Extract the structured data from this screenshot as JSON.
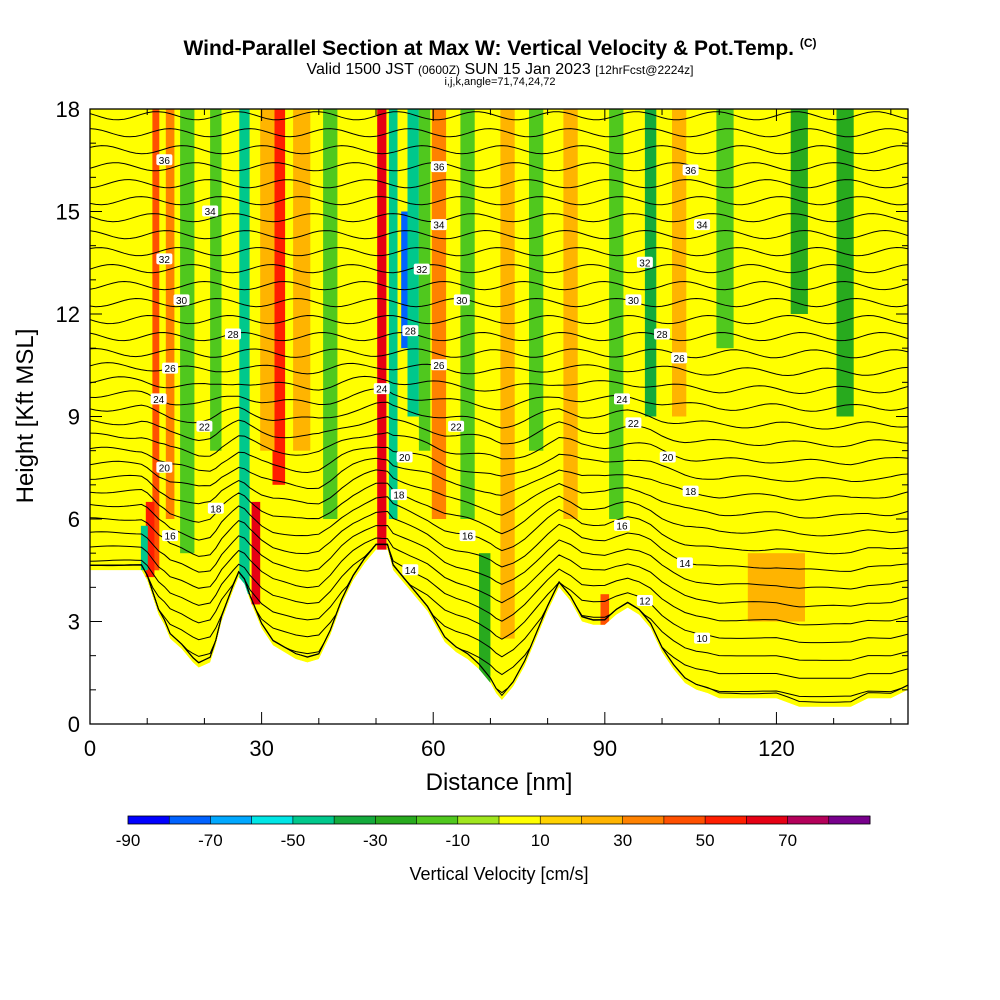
{
  "header": {
    "title": "Wind-Parallel Section at Max W: Vertical Velocity & Pot.Temp.",
    "copyright": "(C)",
    "valid_prefix": "Valid 1500 JST",
    "valid_utc": "(0600Z)",
    "valid_date": "SUN 15 Jan 2023",
    "forecast": "[12hrFcst@2224z]",
    "indices": "i,j,k,angle=71,74,24,72"
  },
  "chart_data": {
    "type": "heatmap",
    "xlabel": "Distance [nm]",
    "ylabel": "Height [Kft MSL]",
    "xlim": [
      0,
      143
    ],
    "ylim": [
      0,
      18
    ],
    "x_ticks": [
      0,
      30,
      60,
      90,
      120
    ],
    "y_ticks": [
      0,
      3,
      6,
      9,
      12,
      15,
      18
    ],
    "grid": false,
    "colorbar": {
      "label": "Vertical Velocity [cm/s]",
      "bounds": [
        -90,
        -80,
        -70,
        -60,
        -50,
        -40,
        -30,
        -20,
        -10,
        0,
        10,
        20,
        30,
        40,
        50,
        60,
        70,
        80
      ],
      "tick_labels": [
        "-90",
        "-70",
        "-50",
        "-30",
        "-10",
        "10",
        "30",
        "50",
        "70"
      ],
      "colors": [
        "#0000ff",
        "#0062ff",
        "#00a8ff",
        "#00e6e6",
        "#00c88c",
        "#14aa3c",
        "#28aa1e",
        "#50c81e",
        "#a0e61e",
        "#ffff00",
        "#ffd200",
        "#ffb400",
        "#ff8200",
        "#ff5000",
        "#ff1e00",
        "#e60014",
        "#b4005a",
        "#78008c"
      ]
    },
    "terrain_profile": {
      "x": [
        0,
        9,
        10,
        11,
        12,
        13,
        14,
        16,
        18,
        19,
        21,
        22,
        23,
        25,
        26,
        27,
        28,
        30,
        32,
        36,
        38,
        40,
        42,
        44,
        46,
        48,
        50,
        52,
        53,
        55,
        57,
        59,
        60,
        62,
        64,
        66,
        68,
        70,
        71,
        72,
        74,
        76,
        78,
        80,
        82,
        84,
        86,
        88,
        90,
        92,
        94,
        96,
        98,
        100,
        102,
        104,
        106,
        108,
        110,
        113,
        117,
        120,
        124,
        130,
        133,
        136,
        140,
        143
      ],
      "y": [
        4.5,
        4.5,
        4.2,
        3.7,
        3.2,
        2.9,
        2.5,
        2.2,
        1.8,
        1.65,
        1.8,
        2.3,
        3.0,
        3.9,
        4.3,
        4.1,
        3.6,
        2.8,
        2.3,
        1.9,
        1.8,
        1.9,
        2.6,
        3.5,
        4.2,
        4.7,
        5.1,
        5.1,
        4.5,
        4.1,
        3.7,
        3.3,
        3.0,
        2.4,
        2.1,
        1.9,
        1.6,
        1.2,
        0.9,
        0.7,
        1.1,
        1.7,
        2.5,
        3.3,
        4.0,
        3.6,
        3.0,
        2.9,
        2.9,
        3.2,
        3.4,
        3.2,
        2.8,
        2.1,
        1.6,
        1.2,
        1.0,
        0.9,
        0.75,
        0.75,
        0.75,
        0.75,
        0.5,
        0.5,
        0.5,
        0.75,
        0.75,
        1.0
      ]
    },
    "theta_isentropes": {
      "levels": [
        10,
        12,
        14,
        16,
        18,
        20,
        22,
        24,
        26,
        28,
        30,
        32,
        34,
        36
      ],
      "labels": [
        {
          "value": "36",
          "x": 13,
          "y": 16.5
        },
        {
          "value": "34",
          "x": 21,
          "y": 15.0
        },
        {
          "value": "32",
          "x": 13,
          "y": 13.6
        },
        {
          "value": "30",
          "x": 16,
          "y": 12.4
        },
        {
          "value": "28",
          "x": 25,
          "y": 11.4
        },
        {
          "value": "26",
          "x": 14,
          "y": 10.4
        },
        {
          "value": "24",
          "x": 12,
          "y": 9.5
        },
        {
          "value": "22",
          "x": 20,
          "y": 8.7
        },
        {
          "value": "20",
          "x": 13,
          "y": 7.5
        },
        {
          "value": "18",
          "x": 22,
          "y": 6.3
        },
        {
          "value": "16",
          "x": 14,
          "y": 5.5
        },
        {
          "value": "36",
          "x": 61,
          "y": 16.3
        },
        {
          "value": "34",
          "x": 61,
          "y": 14.6
        },
        {
          "value": "32",
          "x": 58,
          "y": 13.3
        },
        {
          "value": "30",
          "x": 65,
          "y": 12.4
        },
        {
          "value": "28",
          "x": 56,
          "y": 11.5
        },
        {
          "value": "26",
          "x": 61,
          "y": 10.5
        },
        {
          "value": "24",
          "x": 51,
          "y": 9.8
        },
        {
          "value": "22",
          "x": 64,
          "y": 8.7
        },
        {
          "value": "20",
          "x": 55,
          "y": 7.8
        },
        {
          "value": "18",
          "x": 54,
          "y": 6.7
        },
        {
          "value": "16",
          "x": 66,
          "y": 5.5
        },
        {
          "value": "14",
          "x": 56,
          "y": 4.5
        },
        {
          "value": "36",
          "x": 105,
          "y": 16.2
        },
        {
          "value": "34",
          "x": 107,
          "y": 14.6
        },
        {
          "value": "32",
          "x": 97,
          "y": 13.5
        },
        {
          "value": "30",
          "x": 95,
          "y": 12.4
        },
        {
          "value": "28",
          "x": 100,
          "y": 11.4
        },
        {
          "value": "26",
          "x": 103,
          "y": 10.7
        },
        {
          "value": "24",
          "x": 93,
          "y": 9.5
        },
        {
          "value": "22",
          "x": 95,
          "y": 8.8
        },
        {
          "value": "20",
          "x": 101,
          "y": 7.8
        },
        {
          "value": "18",
          "x": 105,
          "y": 6.8
        },
        {
          "value": "16",
          "x": 93,
          "y": 5.8
        },
        {
          "value": "14",
          "x": 104,
          "y": 4.7
        },
        {
          "value": "12",
          "x": 97,
          "y": 3.6
        },
        {
          "value": "10",
          "x": 107,
          "y": 2.5
        }
      ]
    },
    "velocity_bands": [
      {
        "x": 11.5,
        "width": 1.2,
        "ytop": 18,
        "ybot": 4.5,
        "value": 48
      },
      {
        "x": 10.5,
        "width": 1.5,
        "ytop": 6.5,
        "ybot": 4.3,
        "value": 55
      },
      {
        "x": 14,
        "width": 1.5,
        "ytop": 18,
        "ybot": 6,
        "value": 30
      },
      {
        "x": 9.5,
        "width": 1.2,
        "ytop": 5.8,
        "ybot": 4.5,
        "value": -45
      },
      {
        "x": 17,
        "width": 2.5,
        "ytop": 18,
        "ybot": 5,
        "value": -20
      },
      {
        "x": 22,
        "width": 2.0,
        "ytop": 18,
        "ybot": 8,
        "value": -15
      },
      {
        "x": 27,
        "width": 1.8,
        "ytop": 18,
        "ybot": 3.8,
        "value": -45
      },
      {
        "x": 29,
        "width": 1.5,
        "ytop": 6.5,
        "ybot": 3.5,
        "value": 60
      },
      {
        "x": 33,
        "width": 2.2,
        "ytop": 18,
        "ybot": 7,
        "value": 50
      },
      {
        "x": 31,
        "width": 2.5,
        "ytop": 18,
        "ybot": 8,
        "value": 25
      },
      {
        "x": 37,
        "width": 3,
        "ytop": 18,
        "ybot": 8,
        "value": 25
      },
      {
        "x": 42,
        "width": 2.5,
        "ytop": 18,
        "ybot": 6,
        "value": -12
      },
      {
        "x": 51,
        "width": 1.6,
        "ytop": 18,
        "ybot": 4.8,
        "value": 65
      },
      {
        "x": 53,
        "width": 1.5,
        "ytop": 18,
        "ybot": 6,
        "value": -50
      },
      {
        "x": 55.5,
        "width": 2.2,
        "ytop": 15,
        "ybot": 11,
        "value": -80
      },
      {
        "x": 56.5,
        "width": 2.0,
        "ytop": 18,
        "ybot": 9,
        "value": -45
      },
      {
        "x": 58.5,
        "width": 2.0,
        "ytop": 18,
        "ybot": 8,
        "value": -20
      },
      {
        "x": 61,
        "width": 2.5,
        "ytop": 18,
        "ybot": 6,
        "value": 30
      },
      {
        "x": 66,
        "width": 2.5,
        "ytop": 18,
        "ybot": 6,
        "value": -15
      },
      {
        "x": 69,
        "width": 2.0,
        "ytop": 5,
        "ybot": 1.2,
        "value": -30
      },
      {
        "x": 73,
        "width": 2.5,
        "ytop": 18,
        "ybot": 2.5,
        "value": 25
      },
      {
        "x": 78,
        "width": 2.5,
        "ytop": 18,
        "ybot": 8,
        "value": -15
      },
      {
        "x": 84,
        "width": 2.5,
        "ytop": 18,
        "ybot": 6,
        "value": 25
      },
      {
        "x": 90,
        "width": 1.5,
        "ytop": 3.8,
        "ybot": 2.9,
        "value": 40
      },
      {
        "x": 92,
        "width": 2.5,
        "ytop": 18,
        "ybot": 6,
        "value": -20
      },
      {
        "x": 98,
        "width": 2.0,
        "ytop": 18,
        "ybot": 9,
        "value": -35
      },
      {
        "x": 103,
        "width": 2.5,
        "ytop": 18,
        "ybot": 9,
        "value": 20
      },
      {
        "x": 111,
        "width": 3.0,
        "ytop": 18,
        "ybot": 11,
        "value": -15
      },
      {
        "x": 124,
        "width": 3.0,
        "ytop": 18,
        "ybot": 12,
        "value": -30
      },
      {
        "x": 132,
        "width": 3.0,
        "ytop": 18,
        "ybot": 9,
        "value": -25
      },
      {
        "x": 120,
        "width": 10,
        "ytop": 5,
        "ybot": 3,
        "value": 20
      }
    ]
  }
}
